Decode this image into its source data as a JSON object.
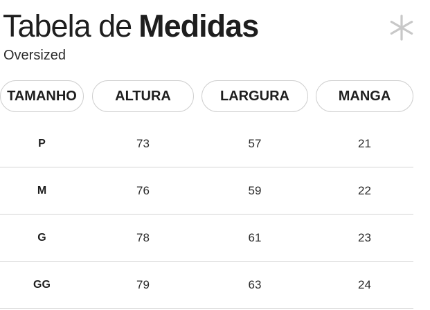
{
  "title": {
    "light": "Tabela de",
    "bold": "Medidas"
  },
  "subtitle": "Oversized",
  "icon": "asterisk-icon",
  "colors": {
    "text": "#1e1e1e",
    "pill_border": "#cfcfcf",
    "divider": "#d4d4d4",
    "icon": "#c8c8c8"
  },
  "columns": [
    "TAMANHO",
    "ALTURA",
    "LARGURA",
    "MANGA"
  ],
  "rows": [
    [
      "P",
      "73",
      "57",
      "21"
    ],
    [
      "M",
      "76",
      "59",
      "22"
    ],
    [
      "G",
      "78",
      "61",
      "23"
    ],
    [
      "GG",
      "79",
      "63",
      "24"
    ]
  ]
}
